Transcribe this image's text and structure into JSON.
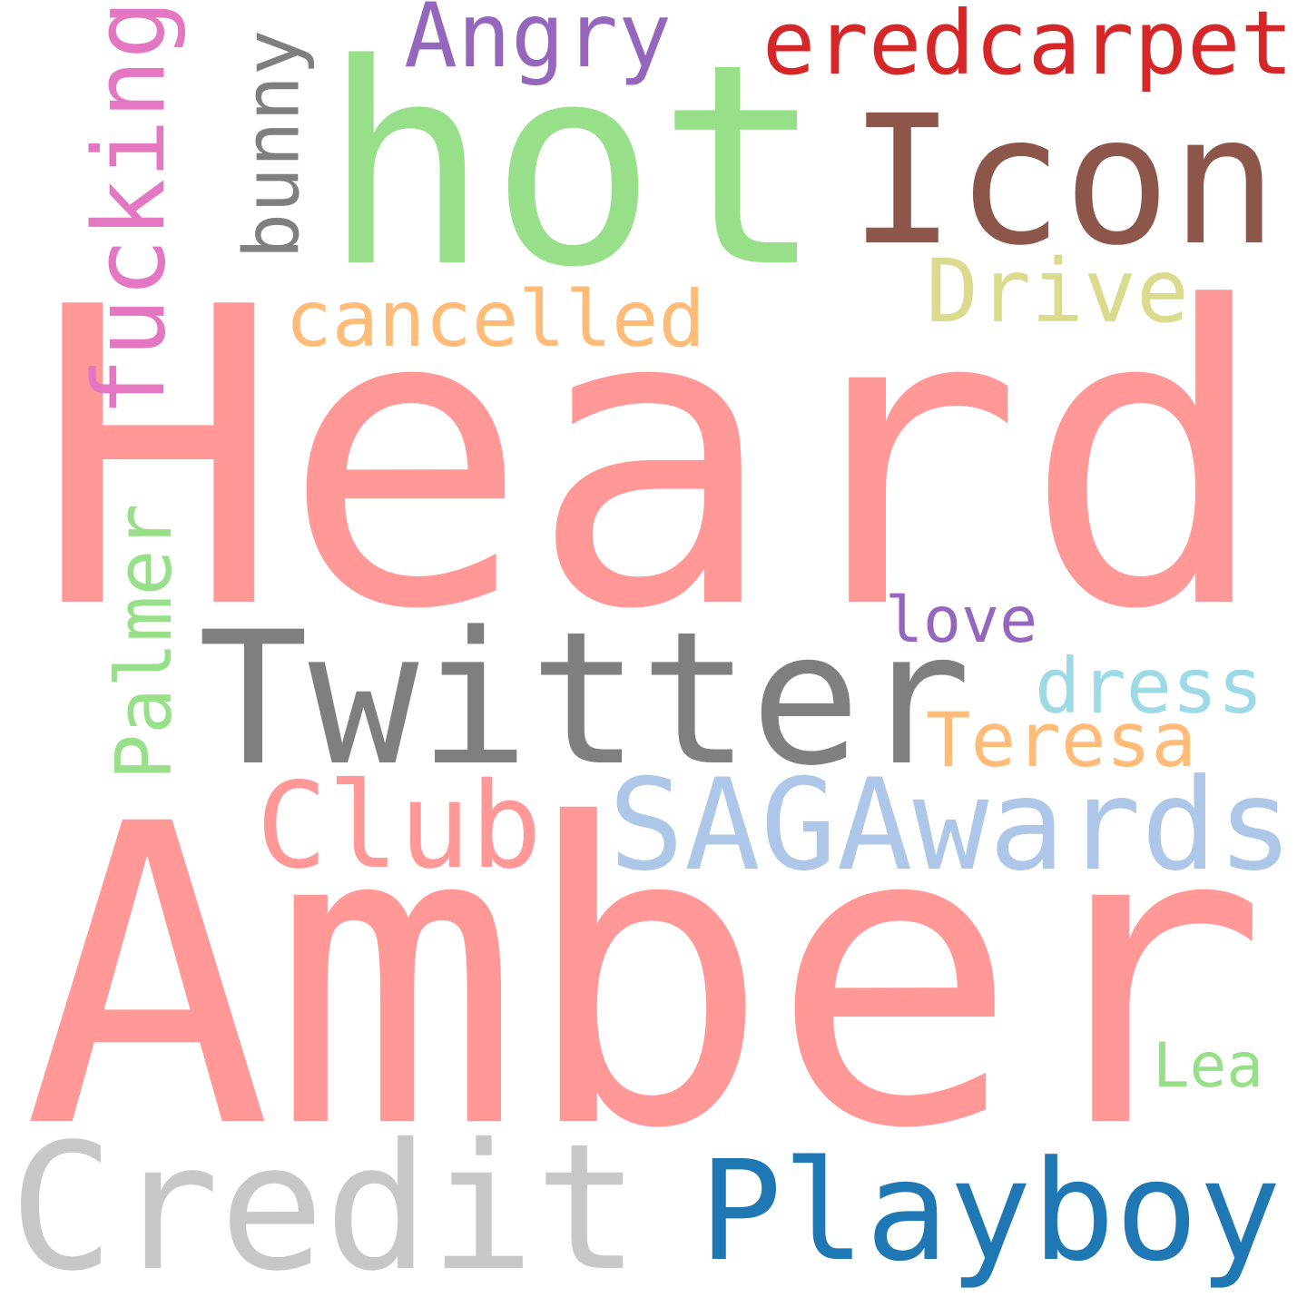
{
  "words": [
    {
      "text": "Heard",
      "color": "#FF9896"
    },
    {
      "text": "Amber",
      "color": "#FF9896"
    },
    {
      "text": "hot",
      "color": "#98DF8A"
    },
    {
      "text": "Icon",
      "color": "#8C564B"
    },
    {
      "text": "Twitter",
      "color": "#7F7F7F"
    },
    {
      "text": "Credit",
      "color": "#C7C7C7"
    },
    {
      "text": "SAGAwards",
      "color": "#AEC7E8"
    },
    {
      "text": "Playboy",
      "color": "#1F77B4"
    },
    {
      "text": "eredcarpet",
      "color": "#D62728"
    },
    {
      "text": "Club",
      "color": "#FF9896"
    },
    {
      "text": "fucking",
      "color": "#E377C2"
    },
    {
      "text": "Angry",
      "color": "#9467BD"
    },
    {
      "text": "bunny",
      "color": "#7F7F7F"
    },
    {
      "text": "Drive",
      "color": "#DBDB8D"
    },
    {
      "text": "cancelled",
      "color": "#FFBB78"
    },
    {
      "text": "Palmer",
      "color": "#98DF8A"
    },
    {
      "text": "Teresa",
      "color": "#FFBB78"
    },
    {
      "text": "dress",
      "color": "#9EDAE5"
    },
    {
      "text": "love",
      "color": "#9467BD"
    },
    {
      "text": "Lea",
      "color": "#98DF8A"
    }
  ]
}
